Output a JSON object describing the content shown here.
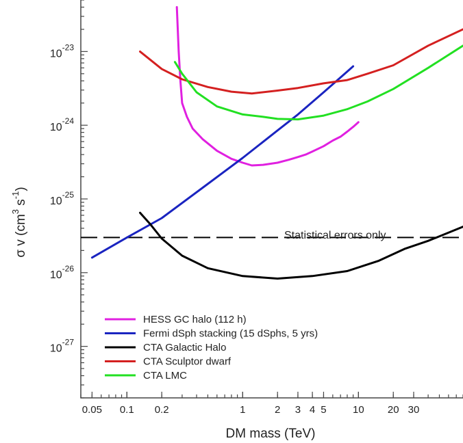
{
  "chart_data": {
    "type": "line",
    "title": "",
    "xlabel": "DM mass (TeV)",
    "ylabel_parts": {
      "main": "σ v (cm",
      "exp1": "3",
      "mid": " s",
      "exp2": "-1",
      "close": ")"
    },
    "xscale": "log",
    "yscale": "log",
    "xlim": [
      0.04,
      80
    ],
    "ylim": [
      2e-28,
      5e-23
    ],
    "grid": false,
    "legend_position": "bottom-left",
    "x_ticks": [
      {
        "value": 0.05,
        "label": "0.05"
      },
      {
        "value": 0.1,
        "label": "0.1"
      },
      {
        "value": 0.2,
        "label": "0.2"
      },
      {
        "value": 1,
        "label": "1"
      },
      {
        "value": 2,
        "label": "2"
      },
      {
        "value": 3,
        "label": "3"
      },
      {
        "value": 4,
        "label": "4"
      },
      {
        "value": 5,
        "label": "5"
      },
      {
        "value": 10,
        "label": "10"
      },
      {
        "value": 20,
        "label": "20"
      },
      {
        "value": 30,
        "label": "30"
      }
    ],
    "y_ticks": [
      {
        "value": 1e-27,
        "base": "10",
        "exp": "-27"
      },
      {
        "value": 1e-26,
        "base": "10",
        "exp": "-26"
      },
      {
        "value": 1e-25,
        "base": "10",
        "exp": "-25"
      },
      {
        "value": 1e-24,
        "base": "10",
        "exp": "-24"
      },
      {
        "value": 1e-23,
        "base": "10",
        "exp": "-23"
      }
    ],
    "annotation": "Statistical errors only",
    "reference_line": {
      "y": 3e-26,
      "style": "dashed",
      "color": "#000000"
    },
    "series": [
      {
        "name": "HESS GC halo (112 h)",
        "color": "#e020e0",
        "x": [
          0.27,
          0.28,
          0.29,
          0.3,
          0.33,
          0.37,
          0.45,
          0.6,
          0.8,
          1.0,
          1.2,
          1.5,
          2.0,
          2.5,
          3.0,
          3.5,
          4.0,
          5.0,
          6.0,
          7.0,
          8.0,
          9.0,
          10.0
        ],
        "y": [
          4e-23,
          1e-23,
          4e-24,
          2e-24,
          1.3e-24,
          9e-25,
          6.5e-25,
          4.5e-25,
          3.5e-25,
          3.1e-25,
          2.85e-25,
          2.9e-25,
          3.1e-25,
          3.4e-25,
          3.7e-25,
          4e-25,
          4.4e-25,
          5.2e-25,
          6.2e-25,
          7e-25,
          8.2e-25,
          9.5e-25,
          1.1e-24
        ]
      },
      {
        "name": "Fermi dSph stacking (15 dSphs, 5 yrs)",
        "color": "#1a24c0",
        "x": [
          0.05,
          0.1,
          0.2,
          0.5,
          1,
          2,
          3,
          5,
          9
        ],
        "y": [
          1.6e-26,
          3e-26,
          5.5e-26,
          1.6e-25,
          3.6e-25,
          8.5e-25,
          1.4e-24,
          2.8e-24,
          6.3e-24
        ]
      },
      {
        "name": "CTA Galactic Halo",
        "color": "#000000",
        "x": [
          0.13,
          0.16,
          0.2,
          0.3,
          0.5,
          1,
          2,
          4,
          8,
          15,
          25,
          40,
          55,
          80
        ],
        "y": [
          6.5e-26,
          4.5e-26,
          2.9e-26,
          1.7e-26,
          1.15e-26,
          9e-27,
          8.3e-27,
          9e-27,
          1.05e-26,
          1.45e-26,
          2.1e-26,
          2.7e-26,
          3.3e-26,
          4.2e-26
        ]
      },
      {
        "name": "CTA Sculptor dwarf",
        "color": "#d42020",
        "x": [
          0.13,
          0.2,
          0.3,
          0.5,
          0.8,
          1.2,
          2,
          3,
          5,
          8,
          12,
          20,
          40,
          80
        ],
        "y": [
          1e-23,
          5.8e-24,
          4.2e-24,
          3.3e-24,
          2.85e-24,
          2.7e-24,
          2.95e-24,
          3.2e-24,
          3.7e-24,
          4.1e-24,
          5e-24,
          6.5e-24,
          1.2e-23,
          2e-23
        ]
      },
      {
        "name": "CTA LMC",
        "color": "#22e022",
        "x": [
          0.26,
          0.3,
          0.4,
          0.6,
          1,
          1.5,
          2,
          3,
          5,
          8,
          12,
          20,
          40,
          80
        ],
        "y": [
          7.2e-24,
          5e-24,
          2.8e-24,
          1.8e-24,
          1.4e-24,
          1.3e-24,
          1.22e-24,
          1.2e-24,
          1.35e-24,
          1.65e-24,
          2.1e-24,
          3.1e-24,
          6e-24,
          1.2e-23
        ]
      }
    ]
  }
}
